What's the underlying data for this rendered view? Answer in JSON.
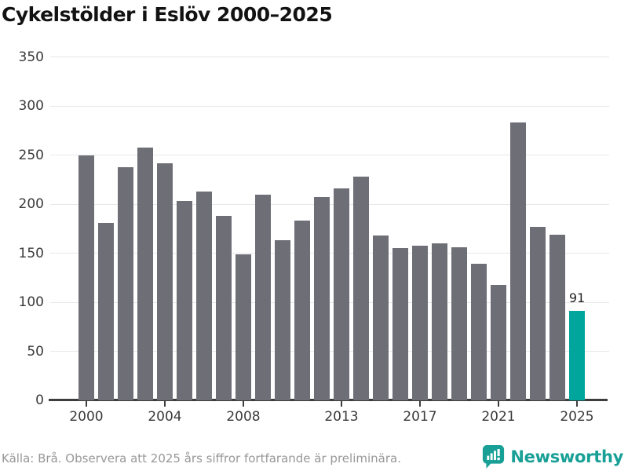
{
  "title": "Cykelstölder i Eslöv 2000–2025",
  "source_note": "Källa: Brå. Observera att 2025 års siffror fortfarande är preliminära.",
  "logo": {
    "name": "Newsworthy"
  },
  "colors": {
    "bar": "#6e6e76",
    "highlight": "#00a69c",
    "logo_teal": "#18a096",
    "gridline": "#e8e8e8",
    "axis_text": "#3a3a3a"
  },
  "chart_data": {
    "type": "bar",
    "title": "Cykelstölder i Eslöv 2000–2025",
    "x": [
      2000,
      2001,
      2002,
      2003,
      2004,
      2005,
      2006,
      2007,
      2008,
      2009,
      2010,
      2011,
      2012,
      2013,
      2014,
      2015,
      2016,
      2017,
      2018,
      2019,
      2020,
      2021,
      2022,
      2023,
      2024,
      2025
    ],
    "values": [
      250,
      181,
      238,
      258,
      242,
      203,
      213,
      188,
      149,
      210,
      163,
      183,
      207,
      216,
      228,
      168,
      155,
      158,
      160,
      156,
      139,
      118,
      283,
      177,
      169,
      91
    ],
    "highlight_index": 25,
    "highlight_label": "91",
    "ylim": [
      0,
      350
    ],
    "y_ticks": [
      0,
      50,
      100,
      150,
      200,
      250,
      300,
      350
    ],
    "x_tick_labels": [
      "2000",
      "2004",
      "2008",
      "2013",
      "2017",
      "2021",
      "2025"
    ],
    "grid": "horizontal",
    "legend": "none"
  }
}
